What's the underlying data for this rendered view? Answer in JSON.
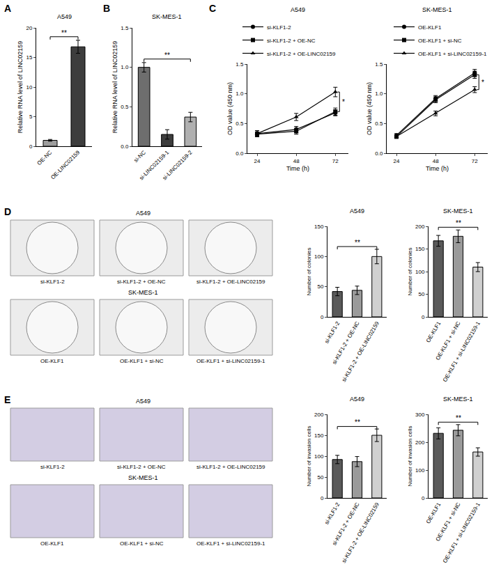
{
  "chart_data": [
    {
      "panel": "A",
      "type": "bar",
      "title": "A549",
      "ylabel": "Relative RNA level of LINC02159",
      "categories": [
        "OE-NC",
        "OE-LINC02159"
      ],
      "values": [
        1.0,
        16.8
      ],
      "errors": [
        0.15,
        1.1
      ],
      "colors": [
        "#9e9e9e",
        "#3d3d3d"
      ],
      "ylim": [
        0,
        20
      ],
      "yticks": [
        0,
        5,
        10,
        15,
        20
      ],
      "grid": false,
      "significance": [
        {
          "from": "OE-NC",
          "to": "OE-LINC02159",
          "label": "**"
        }
      ]
    },
    {
      "panel": "B",
      "type": "bar",
      "title": "SK-MES-1",
      "ylabel": "Relative RNA level of LINC02159",
      "categories": [
        "si-NC",
        "si-LINC02159-1",
        "si-LINC02159-2"
      ],
      "values": [
        1.0,
        0.15,
        0.37
      ],
      "errors": [
        0.06,
        0.06,
        0.06
      ],
      "colors": [
        "#6e6e6e",
        "#3d3d3d",
        "#b0b0b0"
      ],
      "ylim": [
        0,
        1.5
      ],
      "yticks": [
        {
          "value": 0,
          "label": "0.0"
        },
        {
          "value": 0.5,
          "label": "0.5"
        },
        {
          "value": 1,
          "label": "1.0"
        },
        {
          "value": 1.5,
          "label": "1.5"
        }
      ],
      "grid": false,
      "significance": [
        {
          "from": "si-NC",
          "to": "si-LINC02159-2",
          "label": "**"
        }
      ]
    },
    {
      "panel": "C",
      "type": "line",
      "title": "A549",
      "xlabel": "Time (h)",
      "ylabel": "OD value (450 nm)",
      "x": [
        24,
        48,
        72
      ],
      "xlim": [
        18,
        80
      ],
      "xticks": [
        24,
        48,
        72
      ],
      "ylim": [
        0,
        1.5
      ],
      "yticks": [
        {
          "value": 0,
          "label": "0.0"
        },
        {
          "value": 0.5,
          "label": "0.5"
        },
        {
          "value": 1,
          "label": "1.0"
        },
        {
          "value": 1.5,
          "label": "1.5"
        }
      ],
      "grid": false,
      "legend": "top",
      "series": [
        {
          "name": "si-KLF1-2",
          "color": "#000000",
          "marker": "circle",
          "line_style": "solid",
          "values": [
            0.33,
            0.4,
            0.68
          ],
          "errors": [
            0.05,
            0.05,
            0.05
          ]
        },
        {
          "name": "si-KLF1-2 + OE-NC",
          "color": "#000000",
          "marker": "square",
          "line_style": "solid",
          "values": [
            0.32,
            0.37,
            0.7
          ],
          "errors": [
            0.04,
            0.05,
            0.06
          ]
        },
        {
          "name": "si-KLF1-2 + OE-LINC02159",
          "color": "#000000",
          "marker": "triangle-up",
          "line_style": "solid",
          "values": [
            0.33,
            0.61,
            1.03
          ],
          "errors": [
            0.05,
            0.06,
            0.08
          ]
        }
      ],
      "significance": [
        {
          "from": "si-KLF1-2 + OE-NC",
          "to": "si-KLF1-2 + OE-LINC02159",
          "label": "*"
        }
      ]
    },
    {
      "type": "line",
      "title": "SK-MES-1",
      "xlabel": "Time (h)",
      "ylabel": "OD value (450 nm)",
      "x": [
        24,
        48,
        72
      ],
      "xlim": [
        18,
        80
      ],
      "xticks": [
        24,
        48,
        72
      ],
      "ylim": [
        0,
        1.5
      ],
      "yticks": [
        {
          "value": 0,
          "label": "0.0"
        },
        {
          "value": 0.5,
          "label": "0.5"
        },
        {
          "value": 1,
          "label": "1.0"
        },
        {
          "value": 1.5,
          "label": "1.5"
        }
      ],
      "grid": false,
      "legend": "top",
      "series": [
        {
          "name": "OE-KLF1",
          "color": "#000000",
          "marker": "circle",
          "line_style": "solid",
          "values": [
            0.3,
            0.92,
            1.35
          ],
          "errors": [
            0.03,
            0.05,
            0.06
          ]
        },
        {
          "name": "OE-KLF1 + si-NC",
          "color": "#000000",
          "marker": "square",
          "line_style": "solid",
          "values": [
            0.28,
            0.9,
            1.32
          ],
          "errors": [
            0.03,
            0.05,
            0.06
          ]
        },
        {
          "name": "OE-KLF1 + si-LINC02159-1",
          "color": "#000000",
          "marker": "triangle-up",
          "line_style": "solid",
          "values": [
            0.28,
            0.67,
            1.07
          ],
          "errors": [
            0.03,
            0.04,
            0.05
          ]
        }
      ],
      "significance": [
        {
          "from": "OE-KLF1 + si-NC",
          "to": "OE-KLF1 + si-LINC02159-1",
          "label": "*"
        }
      ]
    },
    {
      "type": "bar",
      "title": "A549",
      "ylabel": "Number of colonies",
      "categories": [
        "si-KLF1-2",
        "si-KLF1-2 + OE-NC",
        "si-KLF1-2 + OE-LINC02159"
      ],
      "values": [
        42,
        44,
        100
      ],
      "errors": [
        7,
        7,
        12
      ],
      "colors": [
        "#5a5a5a",
        "#9a9a9a",
        "#d0d0d0"
      ],
      "ylim": [
        0,
        150
      ],
      "yticks": [
        0,
        50,
        100,
        150
      ],
      "grid": false,
      "significance": [
        {
          "from": "si-KLF1-2",
          "to": "si-KLF1-2 + OE-LINC02159",
          "label": "**"
        }
      ]
    },
    {
      "type": "bar",
      "title": "SK-MES-1",
      "ylabel": "Number of colonies",
      "categories": [
        "OE-KLF1",
        "OE-KLF1 + si-NC",
        "OE-KLF1 + si-LINC02159-1"
      ],
      "values": [
        168,
        178,
        110
      ],
      "errors": [
        12,
        14,
        10
      ],
      "colors": [
        "#5a5a5a",
        "#9a9a9a",
        "#d0d0d0"
      ],
      "ylim": [
        0,
        200
      ],
      "yticks": [
        0,
        50,
        100,
        150,
        200
      ],
      "grid": false,
      "significance": [
        {
          "from": "OE-KLF1",
          "to": "OE-KLF1 + si-LINC02159-1",
          "label": "**"
        }
      ]
    },
    {
      "type": "bar",
      "title": "A549",
      "ylabel": "Number of invasion cells",
      "categories": [
        "si-KLF1-2",
        "si-KLF1-2 + OE-NC",
        "si-KLF1-2 + OE-LINC02159"
      ],
      "values": [
        92,
        87,
        150
      ],
      "errors": [
        10,
        12,
        15
      ],
      "colors": [
        "#5a5a5a",
        "#9a9a9a",
        "#d0d0d0"
      ],
      "ylim": [
        0,
        200
      ],
      "yticks": [
        0,
        50,
        100,
        150,
        200
      ],
      "grid": false,
      "significance": [
        {
          "from": "si-KLF1-2",
          "to": "si-KLF1-2 + OE-LINC02159",
          "label": "**"
        }
      ]
    },
    {
      "type": "bar",
      "title": "SK-MES-1",
      "ylabel": "Number of invasion cells",
      "categories": [
        "OE-KLF1",
        "OE-KLF1 + si-NC",
        "OE-KLF1 + si-LINC02159-1"
      ],
      "values": [
        232,
        243,
        165
      ],
      "errors": [
        20,
        20,
        15
      ],
      "colors": [
        "#5a5a5a",
        "#9a9a9a",
        "#d0d0d0"
      ],
      "ylim": [
        0,
        300
      ],
      "yticks": [
        0,
        100,
        200,
        300
      ],
      "grid": false,
      "significance": [
        {
          "from": "OE-KLF1",
          "to": "OE-KLF1 + si-LINC02159-1",
          "label": "**"
        }
      ]
    }
  ],
  "image_panels": [
    {
      "panel": "D",
      "type": "colony_plate",
      "color": "#ececec",
      "rows": [
        {
          "title": "A549",
          "captions": [
            "si-KLF1-2",
            "si-KLF1-2 + OE-NC",
            "si-KLF1-2 + OE-LINC02159"
          ]
        },
        {
          "title": "SK-MES-1",
          "captions": [
            "OE-KLF1",
            "OE-KLF1 + si-NC",
            "OE-KLF1 + si-LINC02159-1"
          ]
        }
      ]
    },
    {
      "panel": "E",
      "type": "micrograph",
      "color": "#d3cde3",
      "rows": [
        {
          "title": "A549",
          "captions": [
            "si-KLF1-2",
            "si-KLF1-2 + OE-NC",
            "si-KLF1-2 + OE-LINC02159"
          ]
        },
        {
          "title": "SK-MES-1",
          "captions": [
            "OE-KLF1",
            "OE-KLF1 + si-NC",
            "OE-KLF1 + si-LINC02159-1"
          ]
        }
      ]
    }
  ]
}
